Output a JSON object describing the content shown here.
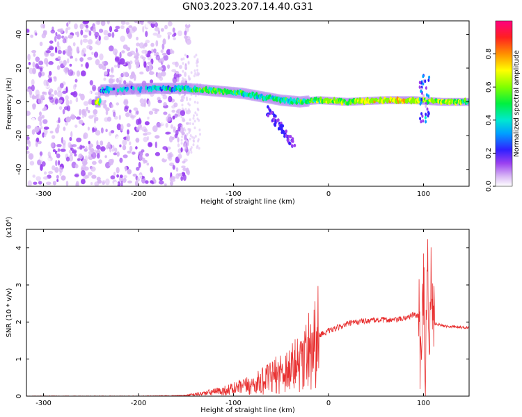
{
  "figure": {
    "title": "GN03.2023.207.14.40.G31"
  },
  "chart_data": [
    {
      "type": "heatmap",
      "xlabel": "Height of straight line (km)",
      "ylabel": "Frequency (Hz)",
      "xlim": [
        -318,
        148
      ],
      "ylim": [
        -50,
        48
      ],
      "xticks": [
        -300,
        -200,
        -100,
        0,
        100
      ],
      "yticks": [
        -40,
        -20,
        0,
        20,
        40
      ],
      "colorbar": {
        "label": "Normalized spectral amplitude",
        "range": [
          0,
          1
        ],
        "ticks": [
          0.0,
          0.2,
          0.4,
          0.6,
          0.8
        ],
        "colors": [
          "#ffffff",
          "#d9b8f5",
          "#7a00f0",
          "#2040ff",
          "#00d8f0",
          "#00f060",
          "#60ff00",
          "#ffff00",
          "#ff8000",
          "#ff2020",
          "#ff0080"
        ]
      },
      "features": {
        "noise_region_x": [
          -318,
          -155
        ],
        "dominant_ridge": [
          {
            "x": -240,
            "y": 7,
            "amp": 0.35
          },
          {
            "x": -185,
            "y": 8,
            "amp": 0.4
          },
          {
            "x": -150,
            "y": 8,
            "amp": 0.45
          },
          {
            "x": -130,
            "y": 7,
            "amp": 0.55
          },
          {
            "x": -110,
            "y": 6,
            "amp": 0.6
          },
          {
            "x": -90,
            "y": 5,
            "amp": 0.5
          },
          {
            "x": -70,
            "y": 3,
            "amp": 0.45
          },
          {
            "x": -50,
            "y": 1,
            "amp": 0.5
          },
          {
            "x": -30,
            "y": 0,
            "amp": 0.5
          },
          {
            "x": -10,
            "y": 1,
            "amp": 0.6
          },
          {
            "x": 20,
            "y": 0,
            "amp": 0.6
          },
          {
            "x": 60,
            "y": 1,
            "amp": 0.75
          },
          {
            "x": 90,
            "y": 1,
            "amp": 0.7
          },
          {
            "x": 120,
            "y": 0,
            "amp": 0.65
          },
          {
            "x": 148,
            "y": 0,
            "amp": 0.6
          }
        ]
      }
    },
    {
      "type": "line",
      "xlabel": "Height of straight line (km)",
      "ylabel": "SNR (10 * v/v)",
      "yscale_note": "(x10⁴)",
      "xlim": [
        -318,
        148
      ],
      "ylim": [
        0,
        4.5
      ],
      "xticks": [
        -300,
        -200,
        -100,
        0,
        100
      ],
      "yticks": [
        0,
        1,
        2,
        3,
        4
      ],
      "line_color": "#e83030",
      "series": [
        {
          "x": [
            -318,
            -200,
            -150,
            -130,
            -110,
            -100,
            -90,
            -80,
            -70,
            -60,
            -50,
            -40,
            -30,
            -25,
            -20,
            -15,
            -10,
            0,
            10,
            20,
            30,
            40,
            50,
            60,
            70,
            80,
            85,
            90,
            95,
            98,
            100,
            102,
            104,
            106,
            108,
            110,
            115,
            120,
            130,
            140,
            148
          ],
          "y": [
            0.0,
            0.0,
            0.02,
            0.08,
            0.15,
            0.2,
            0.25,
            0.3,
            0.4,
            0.5,
            0.65,
            0.75,
            0.9,
            1.1,
            1.3,
            1.5,
            1.65,
            1.75,
            1.85,
            1.95,
            2.0,
            2.03,
            2.05,
            2.06,
            2.05,
            2.1,
            2.15,
            2.2,
            2.15,
            0.5,
            3.5,
            0.3,
            4.4,
            0.2,
            3.8,
            1.95,
            1.95,
            1.9,
            1.88,
            1.86,
            1.85
          ]
        }
      ]
    }
  ]
}
